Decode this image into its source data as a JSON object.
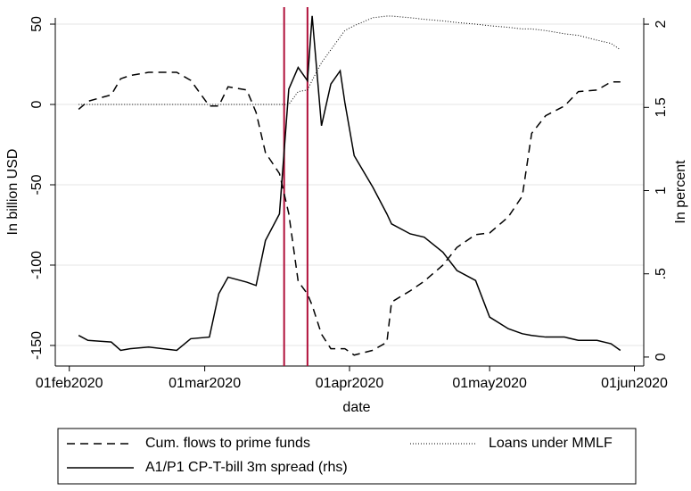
{
  "chart_data": {
    "type": "line",
    "x": [
      "2020-02-03",
      "2020-02-05",
      "2020-02-10",
      "2020-02-12",
      "2020-02-14",
      "2020-02-18",
      "2020-02-24",
      "2020-02-27",
      "2020-03-02",
      "2020-03-04",
      "2020-03-06",
      "2020-03-10",
      "2020-03-12",
      "2020-03-14",
      "2020-03-17",
      "2020-03-19",
      "2020-03-21",
      "2020-03-23",
      "2020-03-24",
      "2020-03-26",
      "2020-03-28",
      "2020-03-30",
      "2020-03-31",
      "2020-04-02",
      "2020-04-06",
      "2020-04-09",
      "2020-04-10",
      "2020-04-14",
      "2020-04-17",
      "2020-04-21",
      "2020-04-24",
      "2020-04-28",
      "2020-05-01",
      "2020-05-05",
      "2020-05-08",
      "2020-05-10",
      "2020-05-13",
      "2020-05-17",
      "2020-05-20",
      "2020-05-24",
      "2020-05-27",
      "2020-05-29"
    ],
    "series": [
      {
        "name": "Cum. flows to prime funds",
        "color": "#000000",
        "dash": "dashed",
        "values": [
          -3,
          2,
          6,
          16,
          18,
          20,
          20,
          15,
          -1,
          -1,
          11,
          9,
          -5,
          -30,
          -43,
          -68,
          -110,
          -118,
          -125,
          -143,
          -152,
          -152,
          -152,
          -156,
          -153,
          -148,
          -123,
          -116,
          -110,
          -100,
          -89,
          -81,
          -80,
          -70,
          -57,
          -18,
          -7,
          -1,
          8,
          9,
          14,
          14
        ]
      },
      {
        "name": "Loans under MMLF",
        "color": "#000000",
        "dash": "dotted",
        "values": [
          0,
          0,
          0,
          0,
          0,
          0,
          0,
          0,
          0,
          0,
          0,
          0,
          0,
          0,
          0,
          0,
          8,
          9,
          15,
          26,
          34,
          42,
          46,
          49,
          54,
          55,
          55,
          54,
          53,
          52,
          51,
          50,
          49,
          48,
          47,
          47,
          46,
          44,
          43,
          40,
          38,
          34
        ]
      },
      {
        "name": "A1/P1 CP-T-bill 3m spread (rhs)",
        "color": "#000000",
        "dash": "solid",
        "axis": "y2",
        "values": [
          0.13,
          0.1,
          0.09,
          0.04,
          0.05,
          0.06,
          0.04,
          0.11,
          0.12,
          0.38,
          0.48,
          0.45,
          0.43,
          0.7,
          0.86,
          1.61,
          1.74,
          1.66,
          2.05,
          1.39,
          1.64,
          1.72,
          1.53,
          1.21,
          1.02,
          0.86,
          0.8,
          0.74,
          0.72,
          0.63,
          0.52,
          0.46,
          0.24,
          0.17,
          0.14,
          0.13,
          0.12,
          0.12,
          0.1,
          0.1,
          0.08,
          0.04
        ]
      }
    ],
    "vlines": [
      "2020-03-18",
      "2020-03-23"
    ],
    "vline_color": "#b0103a",
    "xlabel": "date",
    "ylabel": "In billion USD",
    "y2label": "In percent",
    "xlim": [
      "2020-01-29",
      "2020-06-03"
    ],
    "xticks": [
      {
        "value": "2020-02-01",
        "label": "01feb2020"
      },
      {
        "value": "2020-03-01",
        "label": "01mar2020"
      },
      {
        "value": "2020-04-01",
        "label": "01apr2020"
      },
      {
        "value": "2020-05-01",
        "label": "01may2020"
      },
      {
        "value": "2020-06-01",
        "label": "01jun2020"
      }
    ],
    "ylim": [
      -162.8,
      53.9
    ],
    "yticks": [
      -150,
      -100,
      -50,
      0,
      50
    ],
    "y2lim": [
      -0.054,
      2.038
    ],
    "y2ticks": [
      0,
      {
        "value": 0.5,
        "label": ".5"
      },
      1,
      1.5,
      2
    ],
    "grid": true
  }
}
